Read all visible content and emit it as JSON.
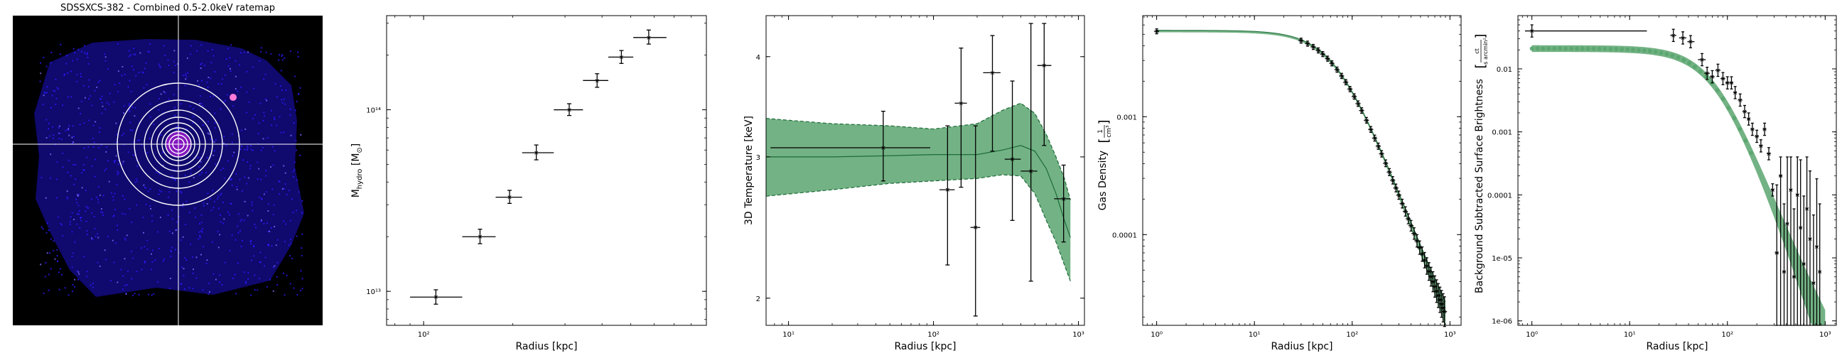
{
  "colors": {
    "ratemap_bg": "#000000",
    "ratemap_emission": "#1e10c8",
    "annulus": "#ffffff",
    "fill": "#5aa56f",
    "fill_line": "#1e6b3a",
    "points": "#000000"
  },
  "chart_data": [
    {
      "type": "image",
      "title": "SDSSXCS-382 - Combined 0.5-2.0keV ratemap",
      "annuli_count": 9,
      "crosshair": true
    },
    {
      "type": "scatter",
      "xlabel": "Radius [kpc]",
      "ylabel": "M_hydro [M_⊙]",
      "xscale": "log",
      "yscale": "log",
      "xlim": [
        75,
        900
      ],
      "ylim": [
        6500000000000.0,
        330000000000000.0
      ],
      "xticks": [
        {
          "value": 100,
          "label": "10²"
        }
      ],
      "yticks": [
        {
          "value": 10000000000000.0,
          "label": "10¹³"
        },
        {
          "value": 100000000000000.0,
          "label": "10¹⁴"
        }
      ],
      "points": [
        {
          "x": 110,
          "xlo": 90,
          "xhi": 135,
          "y": 9300000000000.0,
          "ylo": 8500000000000.0,
          "yhi": 10200000000000.0
        },
        {
          "x": 155,
          "xlo": 135,
          "xhi": 175,
          "y": 20000000000000.0,
          "ylo": 18300000000000.0,
          "yhi": 22000000000000.0
        },
        {
          "x": 195,
          "xlo": 175,
          "xhi": 215,
          "y": 33000000000000.0,
          "ylo": 30500000000000.0,
          "yhi": 36000000000000.0
        },
        {
          "x": 240,
          "xlo": 215,
          "xhi": 275,
          "y": 58000000000000.0,
          "ylo": 53000000000000.0,
          "yhi": 64000000000000.0
        },
        {
          "x": 310,
          "xlo": 275,
          "xhi": 345,
          "y": 100000000000000.0,
          "ylo": 93000000000000.0,
          "yhi": 108000000000000.0
        },
        {
          "x": 385,
          "xlo": 345,
          "xhi": 420,
          "y": 145000000000000.0,
          "ylo": 133000000000000.0,
          "yhi": 158000000000000.0
        },
        {
          "x": 465,
          "xlo": 420,
          "xhi": 510,
          "y": 195000000000000.0,
          "ylo": 180000000000000.0,
          "yhi": 212000000000000.0
        },
        {
          "x": 575,
          "xlo": 510,
          "xhi": 660,
          "y": 250000000000000.0,
          "ylo": 230000000000000.0,
          "yhi": 275000000000000.0
        }
      ]
    },
    {
      "type": "scatter",
      "xlabel": "Radius [kpc]",
      "ylabel": "3D Temperature [keV]",
      "xscale": "log",
      "yscale": "log",
      "xlim": [
        7,
        1100
      ],
      "ylim": [
        1.85,
        4.5
      ],
      "xticks": [
        {
          "value": 10,
          "label": "10¹"
        },
        {
          "value": 100,
          "label": "10²"
        },
        {
          "value": 1000,
          "label": "10³"
        }
      ],
      "yticks": [
        {
          "value": 2,
          "label": "2"
        },
        {
          "value": 3,
          "label": "3"
        },
        {
          "value": 4,
          "label": "4"
        }
      ],
      "model_band": {
        "x": [
          7,
          20,
          50,
          100,
          200,
          300,
          400,
          500,
          600,
          700,
          800,
          880
        ],
        "median": [
          3.0,
          3.0,
          3.01,
          3.02,
          3.02,
          3.06,
          3.1,
          3.05,
          2.9,
          2.7,
          2.5,
          2.38
        ],
        "lower": [
          2.68,
          2.73,
          2.78,
          2.8,
          2.82,
          2.85,
          2.84,
          2.7,
          2.5,
          2.35,
          2.2,
          2.1
        ],
        "upper": [
          3.35,
          3.3,
          3.28,
          3.25,
          3.3,
          3.43,
          3.5,
          3.4,
          3.2,
          3.0,
          2.82,
          2.65
        ]
      },
      "points": [
        {
          "x": 45,
          "xlo": 7.5,
          "xhi": 95,
          "y": 3.08,
          "ylo": 2.8,
          "yhi": 3.42
        },
        {
          "x": 125,
          "xlo": 110,
          "xhi": 140,
          "y": 2.73,
          "ylo": 2.2,
          "yhi": 3.28
        },
        {
          "x": 155,
          "xlo": 140,
          "xhi": 170,
          "y": 3.5,
          "ylo": 2.75,
          "yhi": 4.1
        },
        {
          "x": 195,
          "xlo": 180,
          "xhi": 210,
          "y": 2.45,
          "ylo": 1.9,
          "yhi": 3.28
        },
        {
          "x": 255,
          "xlo": 220,
          "xhi": 290,
          "y": 3.82,
          "ylo": 3.05,
          "yhi": 4.25
        },
        {
          "x": 350,
          "xlo": 310,
          "xhi": 400,
          "y": 2.98,
          "ylo": 2.5,
          "yhi": 3.73
        },
        {
          "x": 470,
          "xlo": 400,
          "xhi": 520,
          "y": 2.88,
          "ylo": 2.1,
          "yhi": 4.4
        },
        {
          "x": 580,
          "xlo": 520,
          "xhi": 650,
          "y": 3.9,
          "ylo": 3.1,
          "yhi": 4.4
        },
        {
          "x": 790,
          "xlo": 680,
          "xhi": 880,
          "y": 2.66,
          "ylo": 2.35,
          "yhi": 2.93
        }
      ]
    },
    {
      "type": "line",
      "xlabel": "Radius [kpc]",
      "ylabel": "Gas Density",
      "yunit": "1/cm³",
      "xscale": "log",
      "yscale": "log",
      "xlim": [
        0.72,
        1300
      ],
      "ylim": [
        1.7e-05,
        0.0072
      ],
      "xticks": [
        {
          "value": 1,
          "label": "10⁰"
        },
        {
          "value": 10,
          "label": "10¹"
        },
        {
          "value": 100,
          "label": "10²"
        },
        {
          "value": 1000,
          "label": "10³"
        }
      ],
      "yticks": [
        {
          "value": 0.0001,
          "label": "0.0001"
        },
        {
          "value": 0.001,
          "label": "0.001"
        }
      ],
      "model": {
        "rho0": 0.0053,
        "rc": 70,
        "beta": 0.72,
        "rmax": 900
      },
      "points_x": [
        1,
        30,
        35,
        40,
        45,
        50,
        56,
        62,
        70,
        78,
        86,
        95,
        105,
        115,
        125,
        140,
        155,
        170,
        185,
        200,
        220,
        240,
        260,
        280,
        300,
        325,
        350,
        375,
        400,
        430,
        460,
        490,
        520,
        550,
        580,
        610,
        640,
        670,
        700,
        730,
        760,
        790,
        820,
        850,
        880
      ]
    },
    {
      "type": "scatter",
      "xlabel": "Radius [kpc]",
      "ylabel": "Background Subtracted Surface Brightness",
      "yunit_num": "ct",
      "yunit_den": "s arcmin²",
      "xscale": "log",
      "yscale": "log",
      "xlim": [
        0.72,
        1300
      ],
      "ylim": [
        8.5e-07,
        0.07
      ],
      "xticks": [
        {
          "value": 1,
          "label": "10⁰"
        },
        {
          "value": 10,
          "label": "10¹"
        },
        {
          "value": 100,
          "label": "10²"
        },
        {
          "value": 1000,
          "label": "10³"
        }
      ],
      "yticks": [
        {
          "value": 0.01,
          "label": "0.01"
        },
        {
          "value": 0.001,
          "label": "0.001"
        },
        {
          "value": 0.0001,
          "label": "0.0001"
        },
        {
          "value": 1e-05,
          "label": "1e-05"
        },
        {
          "value": 1e-06,
          "label": "1e-06"
        }
      ],
      "model": {
        "s0": 0.021,
        "rc": 75,
        "beta": 0.85,
        "band_frac": 0.13
      },
      "points": [
        {
          "x": 1.0,
          "xlo": 0.85,
          "xhi": 15,
          "y": 0.04
        },
        {
          "x": 28,
          "xlo": 26,
          "xhi": 30,
          "y": 0.034
        },
        {
          "x": 35,
          "xlo": 32,
          "xhi": 38,
          "y": 0.031
        },
        {
          "x": 42,
          "xlo": 39,
          "xhi": 46,
          "y": 0.027
        },
        {
          "x": 55,
          "xlo": 50,
          "xhi": 60,
          "y": 0.014
        },
        {
          "x": 62,
          "xlo": 58,
          "xhi": 66,
          "y": 0.0085
        },
        {
          "x": 70,
          "xlo": 66,
          "xhi": 74,
          "y": 0.0075
        },
        {
          "x": 80,
          "xlo": 75,
          "xhi": 85,
          "y": 0.0095
        },
        {
          "x": 90,
          "xlo": 85,
          "xhi": 95,
          "y": 0.007
        },
        {
          "x": 100,
          "xlo": 95,
          "xhi": 105,
          "y": 0.006
        },
        {
          "x": 110,
          "xlo": 105,
          "xhi": 115,
          "y": 0.006
        },
        {
          "x": 120,
          "xlo": 115,
          "xhi": 125,
          "y": 0.0042
        },
        {
          "x": 135,
          "xlo": 128,
          "xhi": 142,
          "y": 0.0032
        },
        {
          "x": 150,
          "xlo": 142,
          "xhi": 158,
          "y": 0.0021
        },
        {
          "x": 165,
          "xlo": 158,
          "xhi": 172,
          "y": 0.0016
        },
        {
          "x": 180,
          "xlo": 172,
          "xhi": 188,
          "y": 0.0011
        },
        {
          "x": 200,
          "xlo": 190,
          "xhi": 210,
          "y": 0.00085
        },
        {
          "x": 220,
          "xlo": 210,
          "xhi": 230,
          "y": 0.0006
        },
        {
          "x": 240,
          "xlo": 230,
          "xhi": 250,
          "y": 0.0011
        },
        {
          "x": 265,
          "xlo": 252,
          "xhi": 278,
          "y": 0.00045
        },
        {
          "x": 290,
          "xlo": 278,
          "xhi": 302,
          "y": 0.00012
        },
        {
          "x": 320,
          "xlo": 305,
          "xhi": 335,
          "y": 1.2e-05
        },
        {
          "x": 350,
          "xlo": 335,
          "xhi": 365,
          "y": 0.0002
        },
        {
          "x": 380,
          "xlo": 365,
          "xhi": 395,
          "y": 6e-06
        },
        {
          "x": 410,
          "xlo": 395,
          "xhi": 425,
          "y": 3.5e-05
        },
        {
          "x": 445,
          "xlo": 428,
          "xhi": 462,
          "y": 0.00012
        },
        {
          "x": 480,
          "xlo": 462,
          "xhi": 498,
          "y": 5e-06
        },
        {
          "x": 520,
          "xlo": 500,
          "xhi": 540,
          "y": 0.0001
        },
        {
          "x": 560,
          "xlo": 540,
          "xhi": 580,
          "y": 3e-05
        },
        {
          "x": 605,
          "xlo": 582,
          "xhi": 628,
          "y": 8e-06
        },
        {
          "x": 650,
          "xlo": 628,
          "xhi": 672,
          "y": 6e-05
        },
        {
          "x": 700,
          "xlo": 675,
          "xhi": 725,
          "y": 2e-05
        },
        {
          "x": 760,
          "xlo": 730,
          "xhi": 790,
          "y": 4e-06
        },
        {
          "x": 820,
          "xlo": 792,
          "xhi": 848,
          "y": 1.5e-05
        },
        {
          "x": 880,
          "xlo": 850,
          "xhi": 910,
          "y": 6e-06
        }
      ]
    }
  ]
}
